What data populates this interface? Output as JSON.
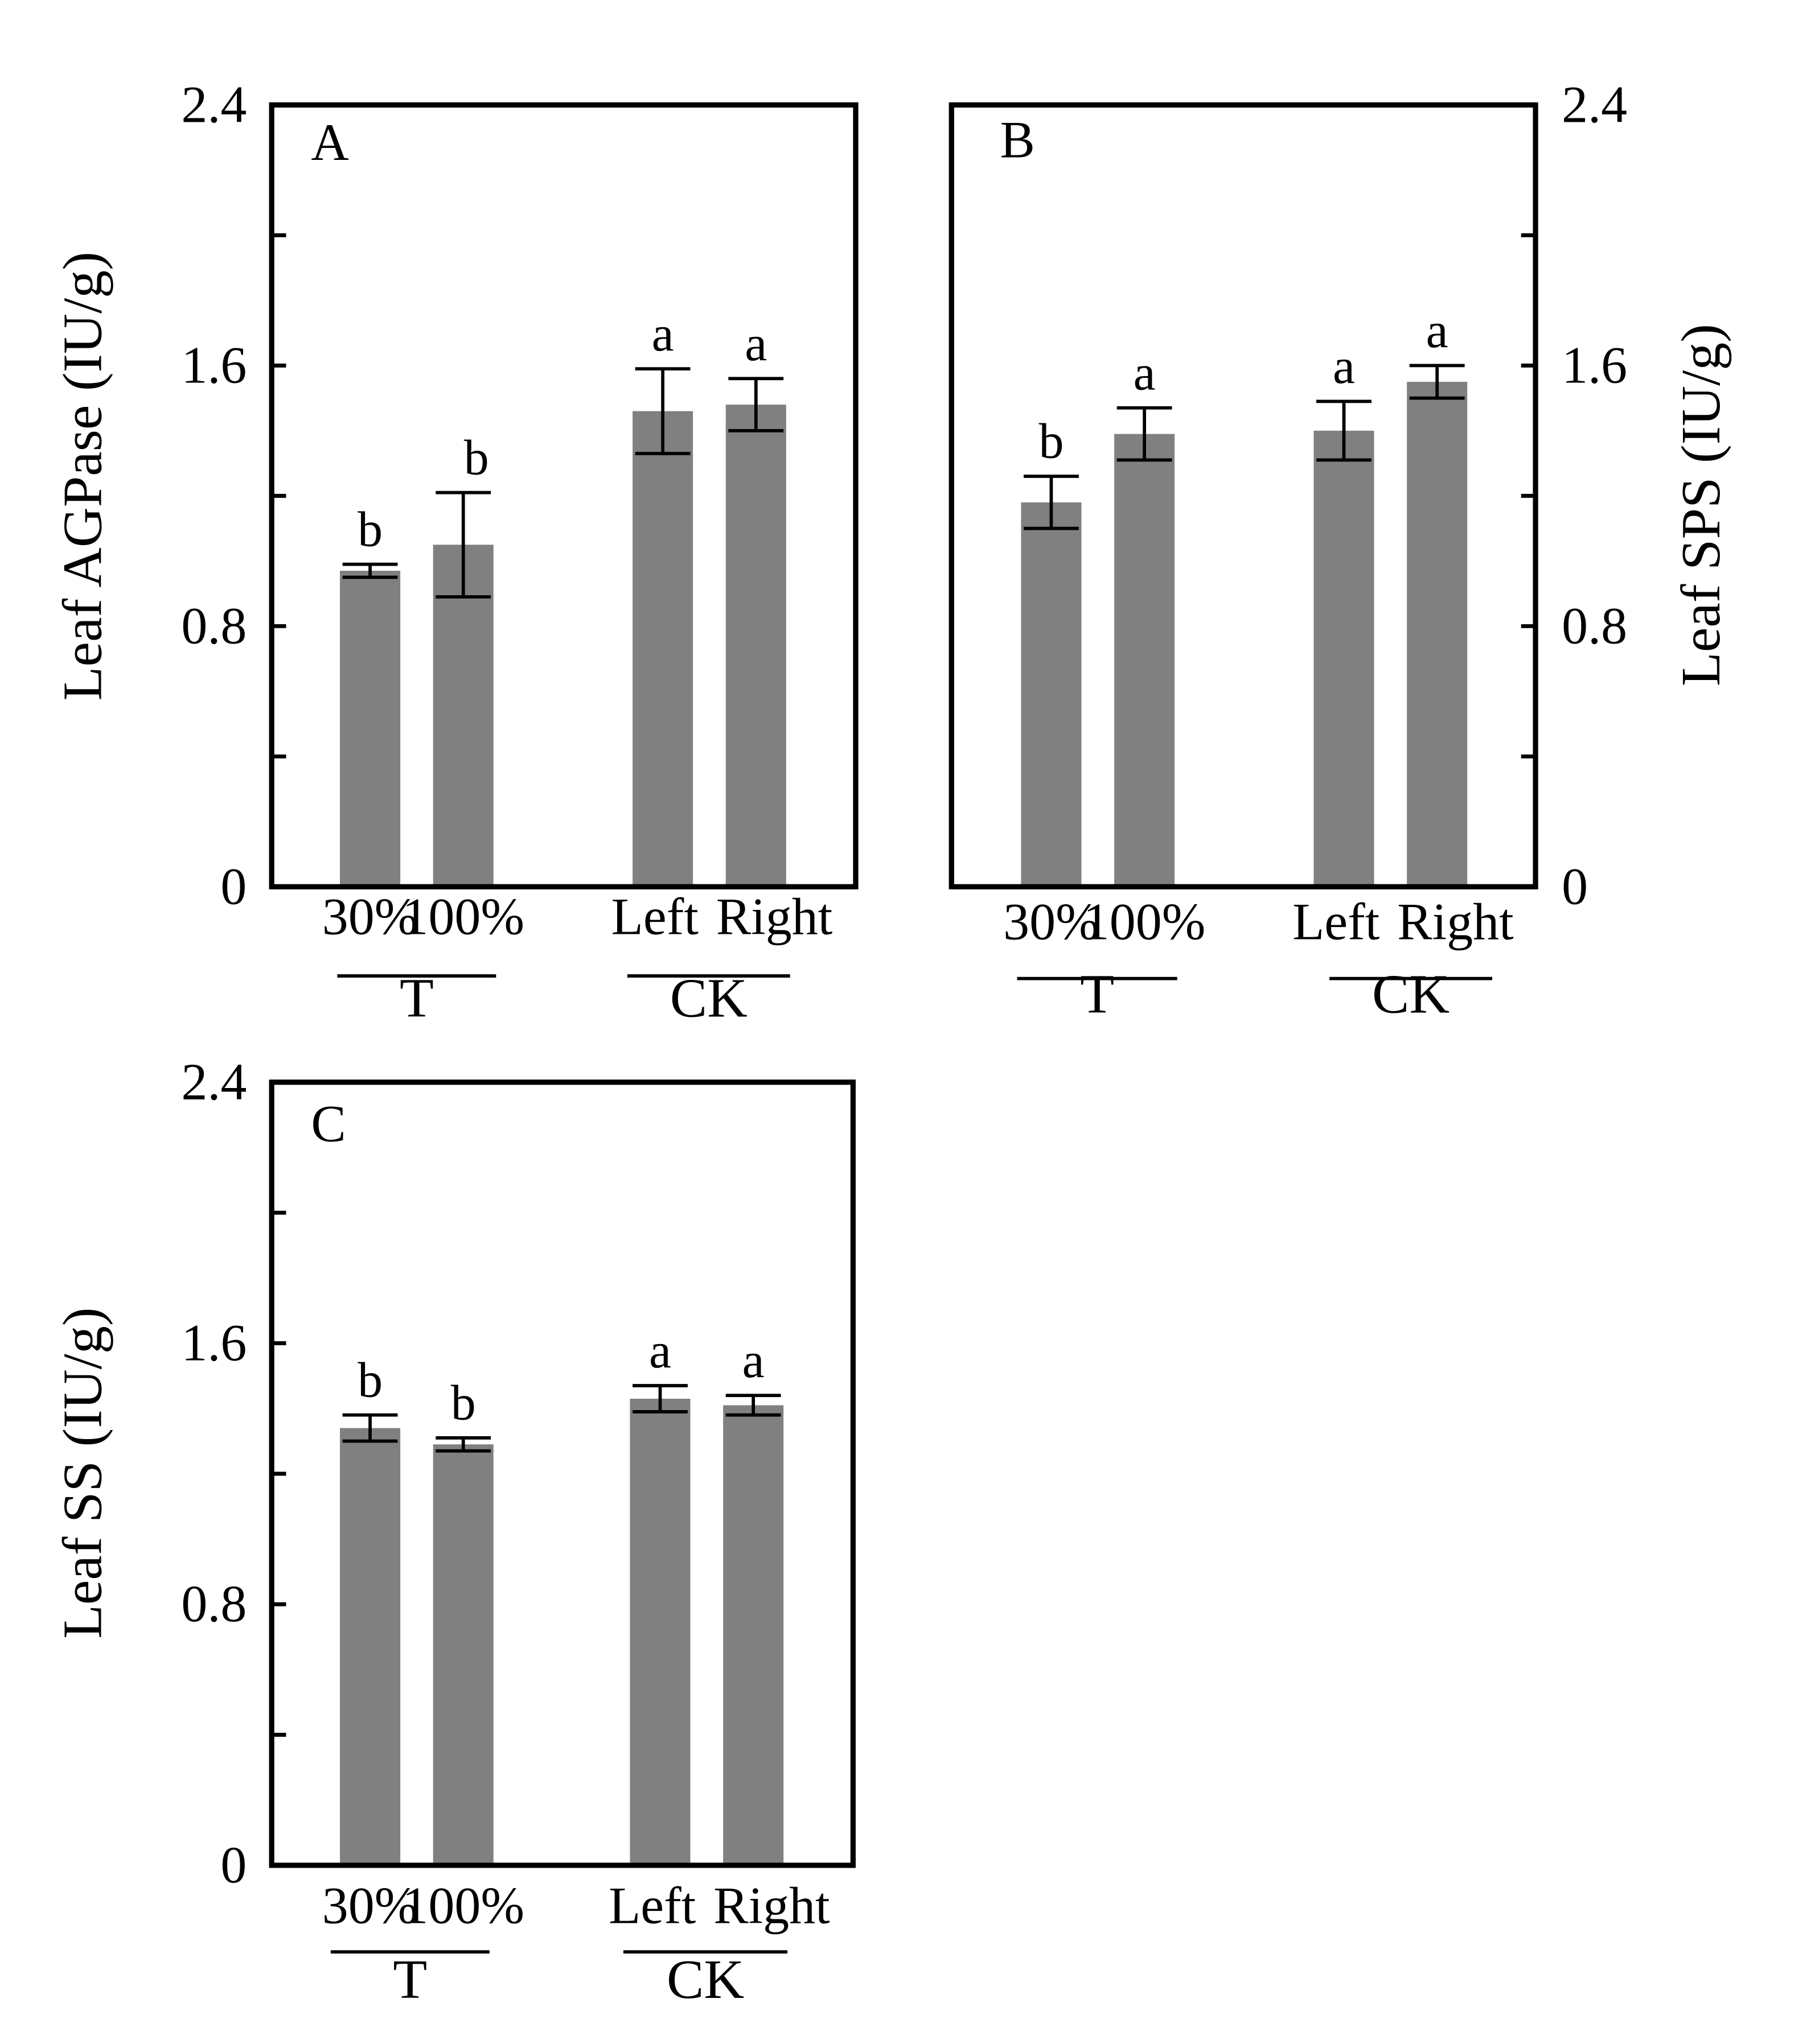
{
  "colors": {
    "bar": "#808080",
    "axis": "#000000",
    "background": "#ffffff"
  },
  "chart_data": [
    {
      "type": "bar",
      "panel": "A",
      "ylabel": "Leaf AGPase (IU/g)",
      "yaxis_side": "left",
      "ylim": [
        0,
        2.4
      ],
      "yticks": [
        "0",
        "0.8",
        "1.6",
        "2.4"
      ],
      "categories": [
        "30%",
        "100%",
        "Left",
        "Right"
      ],
      "groups": [
        {
          "label": "T",
          "members": [
            "30%",
            "100%"
          ]
        },
        {
          "label": "CK",
          "members": [
            "Left",
            "Right"
          ]
        }
      ],
      "values": [
        0.97,
        1.05,
        1.46,
        1.48
      ],
      "errors": [
        0.02,
        0.16,
        0.13,
        0.08
      ],
      "significance": [
        "b",
        "b",
        "a",
        "a"
      ]
    },
    {
      "type": "bar",
      "panel": "B",
      "ylabel": "Leaf SPS (IU/g)",
      "yaxis_side": "right",
      "ylim": [
        0,
        2.4
      ],
      "yticks": [
        "0",
        "0.8",
        "1.6",
        "2.4"
      ],
      "categories": [
        "30%",
        "100%",
        "Left",
        "Right"
      ],
      "groups": [
        {
          "label": "T",
          "members": [
            "30%",
            "100%"
          ]
        },
        {
          "label": "CK",
          "members": [
            "Left",
            "Right"
          ]
        }
      ],
      "values": [
        1.18,
        1.39,
        1.4,
        1.55
      ],
      "errors": [
        0.08,
        0.08,
        0.09,
        0.05
      ],
      "significance": [
        "b",
        "a",
        "a",
        "a"
      ]
    },
    {
      "type": "bar",
      "panel": "C",
      "ylabel": "Leaf SS (IU/g)",
      "yaxis_side": "left",
      "ylim": [
        0,
        2.4
      ],
      "yticks": [
        "0",
        "0.8",
        "1.6",
        "2.4"
      ],
      "categories": [
        "30%",
        "100%",
        "Left",
        "Right"
      ],
      "groups": [
        {
          "label": "T",
          "members": [
            "30%",
            "100%"
          ]
        },
        {
          "label": "CK",
          "members": [
            "Left",
            "Right"
          ]
        }
      ],
      "values": [
        1.34,
        1.29,
        1.43,
        1.41
      ],
      "errors": [
        0.04,
        0.02,
        0.04,
        0.03
      ],
      "significance": [
        "b",
        "b",
        "a",
        "a"
      ]
    }
  ]
}
